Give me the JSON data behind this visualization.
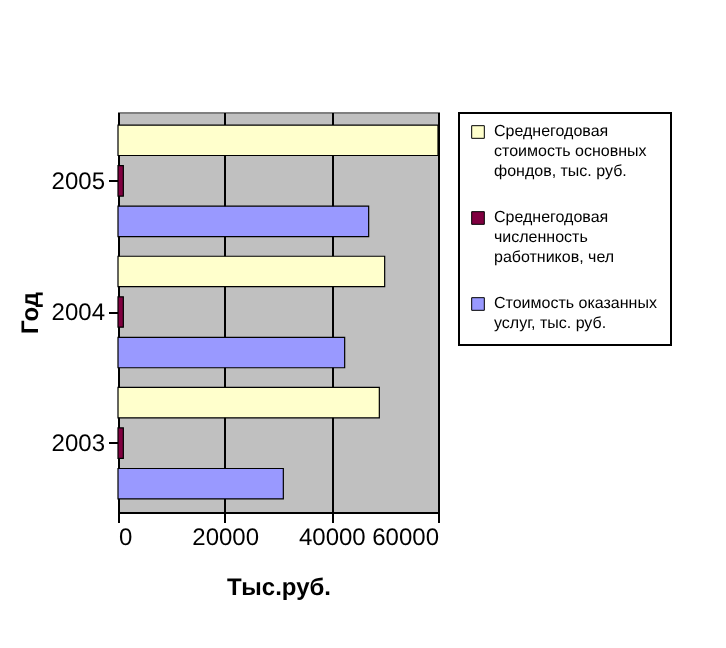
{
  "chart_data": {
    "type": "bar",
    "orientation": "horizontal",
    "xlabel": "Тыс.руб.",
    "ylabel": "Год",
    "categories": [
      "2005",
      "2004",
      "2003"
    ],
    "series": [
      {
        "name": "Среднегодовая стоимость основных фондов, тыс. руб.",
        "color": "#ffffcc",
        "values": [
          60000,
          50000,
          49000
        ]
      },
      {
        "name": "Среднегодовая численность работников, чел",
        "color": "#800040",
        "values": [
          1000,
          1000,
          1000
        ]
      },
      {
        "name": "Стоимость оказанных услуг, тыс. руб.",
        "color": "#9999ff",
        "values": [
          47000,
          42500,
          31000
        ]
      }
    ],
    "xlim": [
      0,
      60000
    ],
    "xticks": [
      0,
      20000,
      40000,
      60000
    ],
    "grid": "x",
    "legend": "right"
  }
}
